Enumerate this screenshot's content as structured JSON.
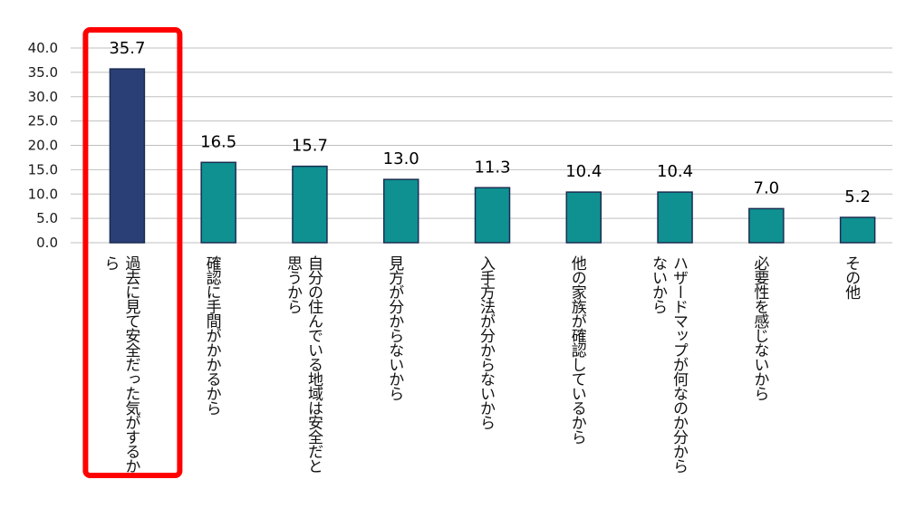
{
  "chart_data": {
    "type": "bar",
    "title": "",
    "xlabel": "",
    "ylabel": "",
    "ylim": [
      0,
      40
    ],
    "ytick_step": 5,
    "ytick_labels": [
      "0.0",
      "5.0",
      "10.0",
      "15.0",
      "20.0",
      "25.0",
      "30.0",
      "35.0",
      "40.0"
    ],
    "grid": true,
    "legend": "none",
    "categories": [
      "過去に見て安全だった気がするから",
      "確認に手間がかかるから",
      "自分の住んでいる地域は安全だと思うから",
      "見方が分からないから",
      "入手方法が分からないから",
      "他の家族が確認しているから",
      "ハザードマップが何なのか分からないから",
      "必要性を感じないから",
      "その他"
    ],
    "values": [
      35.7,
      16.5,
      15.7,
      13.0,
      11.3,
      10.4,
      10.4,
      7.0,
      5.2
    ],
    "value_labels": [
      "35.7",
      "16.5",
      "15.7",
      "13.0",
      "11.3",
      "10.4",
      "10.4",
      "7.0",
      "5.2"
    ],
    "highlight_index": 0,
    "colors": {
      "highlight_bar": "#2a3f75",
      "bar": "#0f9191",
      "bar_edge": "#1b2d52",
      "highlight_box": "#ff0000",
      "grid": "#bfbfbf"
    }
  }
}
